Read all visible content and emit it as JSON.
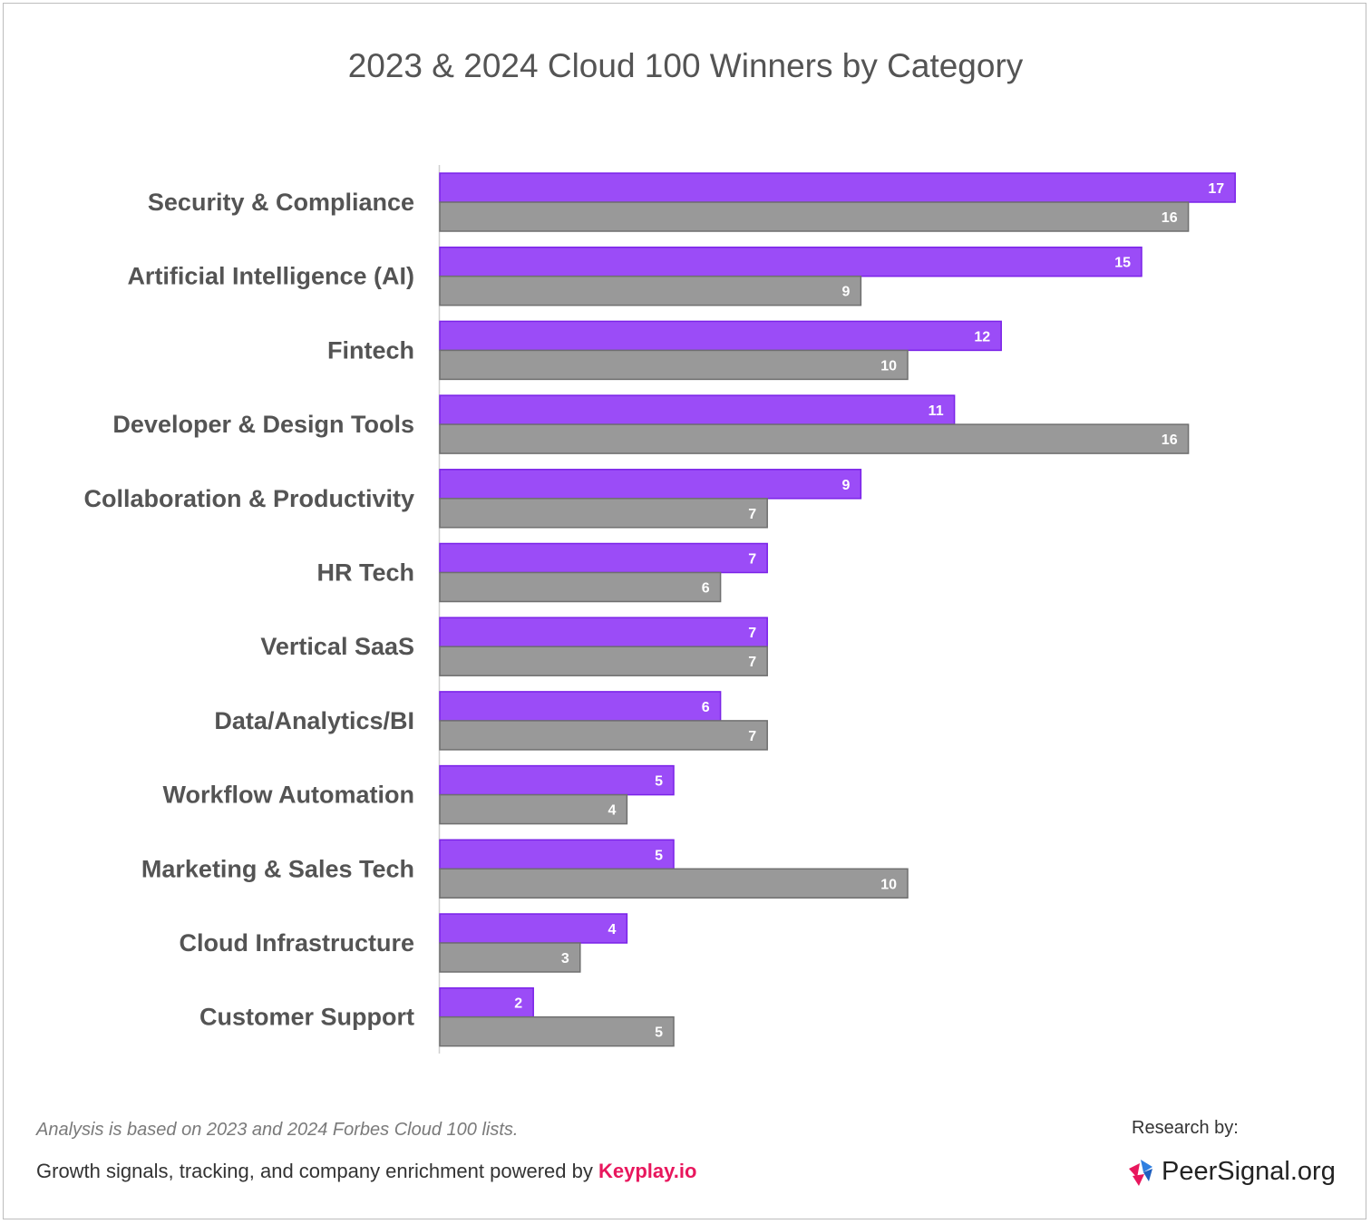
{
  "title": "2023 & 2024 Cloud 100 Winners by Category",
  "colors": {
    "purple": "#9b4cf7",
    "purple_border": "#7a22e8",
    "gray": "#999999",
    "gray_border": "#6f6f6f",
    "brand_red": "#e8175d"
  },
  "chart_data": {
    "type": "bar",
    "orientation": "horizontal",
    "title": "2023 & 2024 Cloud 100 Winners by Category",
    "categories": [
      "Security & Compliance",
      "Artificial Intelligence (AI)",
      "Fintech",
      "Developer & Design Tools",
      "Collaboration & Productivity",
      "HR Tech",
      "Vertical SaaS",
      "Data/Analytics/BI",
      "Workflow Automation",
      "Marketing & Sales Tech",
      "Cloud Infrastructure",
      "Customer Support"
    ],
    "series": [
      {
        "color": "#9b4cf7",
        "values": [
          17,
          15,
          12,
          11,
          9,
          7,
          7,
          6,
          5,
          5,
          4,
          2
        ]
      },
      {
        "color": "#999999",
        "values": [
          16,
          9,
          10,
          16,
          7,
          6,
          7,
          7,
          4,
          10,
          3,
          5
        ]
      }
    ],
    "xlim": [
      0,
      17
    ],
    "grid": false,
    "legend": "none",
    "data_labels": true
  },
  "footer": {
    "note": "Analysis is based on 2023 and 2024 Forbes Cloud 100 lists.",
    "powered_text": "Growth signals, tracking, and company enrichment powered by ",
    "powered_brand": "Keyplay.io",
    "research_label": "Research by:",
    "logo_text": "PeerSignal.org",
    "logo_icon": "peersignal-logo-icon"
  }
}
